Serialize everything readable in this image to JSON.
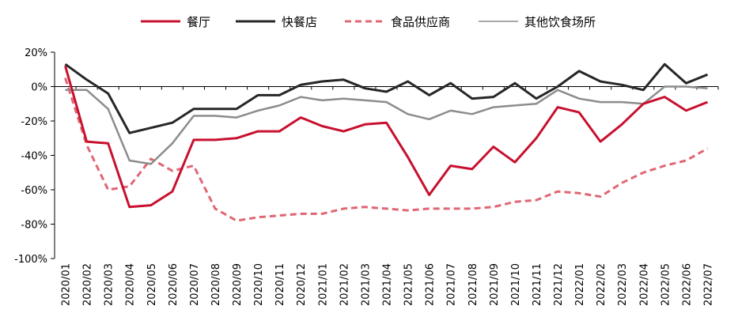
{
  "chart_data": {
    "type": "line",
    "title": "",
    "xlabel": "",
    "ylabel": "",
    "ylim": [
      -100,
      20
    ],
    "yticks": [
      20,
      0,
      -20,
      -40,
      -60,
      -80,
      -100
    ],
    "ytick_labels": [
      "20%",
      "0%",
      "-20%",
      "-40%",
      "-60%",
      "-80%",
      "-100%"
    ],
    "grid": false,
    "legend_position": "top",
    "categories": [
      "2020/01",
      "2020/02",
      "2020/03",
      "2020/04",
      "2020/05",
      "2020/06",
      "2020/07",
      "2020/08",
      "2020/09",
      "2020/10",
      "2020/11",
      "2020/12",
      "2021/01",
      "2021/02",
      "2021/03",
      "2021/04",
      "2021/05",
      "2021/06",
      "2021/07",
      "2021/08",
      "2021/09",
      "2021/10",
      "2021/11",
      "2021/12",
      "2022/01",
      "2022/02",
      "2022/03",
      "2022/04",
      "2022/05",
      "2022/06",
      "2022/07"
    ],
    "series": [
      {
        "name": "餐厅",
        "color": "#c8102e",
        "style": "solid",
        "width": 3,
        "values": [
          12,
          -32,
          -33,
          -70,
          -69,
          -61,
          -31,
          -31,
          -30,
          -26,
          -26,
          -18,
          -23,
          -26,
          -22,
          -21,
          -41,
          -63,
          -46,
          -48,
          -35,
          -44,
          -30,
          -12,
          -15,
          -32,
          -22,
          -10,
          -6,
          -14,
          -9
        ]
      },
      {
        "name": "快餐店",
        "color": "#262626",
        "style": "solid",
        "width": 3,
        "values": [
          13,
          4,
          -4,
          -27,
          -24,
          -21,
          -13,
          -13,
          -13,
          -5,
          -5,
          1,
          3,
          4,
          -1,
          -3,
          3,
          -5,
          2,
          -7,
          -6,
          2,
          -7,
          0,
          9,
          3,
          1,
          -2,
          13,
          2,
          7
        ]
      },
      {
        "name": "食品供应商",
        "color": "#e06673",
        "style": "dashed",
        "width": 3,
        "values": [
          5,
          -34,
          -60,
          -58,
          -42,
          -49,
          -46,
          -71,
          -78,
          -76,
          -75,
          -74,
          -74,
          -71,
          -70,
          -71,
          -72,
          -71,
          -71,
          -71,
          -70,
          -67,
          -66,
          -61,
          -62,
          -64,
          -56,
          -50,
          -46,
          -43,
          -36
        ]
      },
      {
        "name": "其他饮食场所",
        "color": "#8c8c8c",
        "style": "solid",
        "width": 3,
        "values": [
          -2,
          -2,
          -13,
          -43,
          -45,
          -33,
          -17,
          -17,
          -18,
          -14,
          -11,
          -6,
          -8,
          -7,
          -8,
          -9,
          -16,
          -19,
          -14,
          -16,
          -12,
          -11,
          -10,
          -2,
          -7,
          -9,
          -9,
          -10,
          0,
          0,
          -1
        ]
      }
    ]
  }
}
